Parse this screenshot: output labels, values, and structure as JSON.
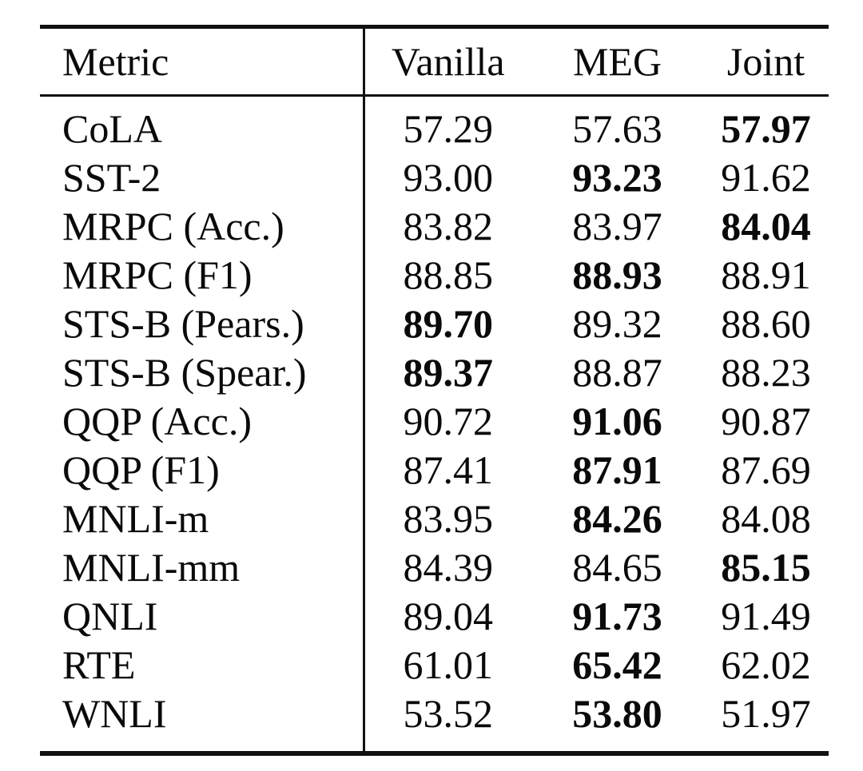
{
  "colors": {
    "background": "#ffffff",
    "text": "#0a0a0a",
    "rule": "#111111"
  },
  "table": {
    "columns": [
      "Metric",
      "Vanilla",
      "MEG",
      "Joint"
    ],
    "rows": [
      {
        "metric": "CoLA",
        "values": [
          "57.29",
          "57.63",
          "57.97"
        ],
        "bold_index": 2
      },
      {
        "metric": "SST-2",
        "values": [
          "93.00",
          "93.23",
          "91.62"
        ],
        "bold_index": 1
      },
      {
        "metric": "MRPC (Acc.)",
        "values": [
          "83.82",
          "83.97",
          "84.04"
        ],
        "bold_index": 2
      },
      {
        "metric": "MRPC (F1)",
        "values": [
          "88.85",
          "88.93",
          "88.91"
        ],
        "bold_index": 1
      },
      {
        "metric": "STS-B (Pears.)",
        "values": [
          "89.70",
          "89.32",
          "88.60"
        ],
        "bold_index": 0
      },
      {
        "metric": "STS-B (Spear.)",
        "values": [
          "89.37",
          "88.87",
          "88.23"
        ],
        "bold_index": 0
      },
      {
        "metric": "QQP (Acc.)",
        "values": [
          "90.72",
          "91.06",
          "90.87"
        ],
        "bold_index": 1
      },
      {
        "metric": "QQP (F1)",
        "values": [
          "87.41",
          "87.91",
          "87.69"
        ],
        "bold_index": 1
      },
      {
        "metric": "MNLI-m",
        "values": [
          "83.95",
          "84.26",
          "84.08"
        ],
        "bold_index": 1
      },
      {
        "metric": "MNLI-mm",
        "values": [
          "84.39",
          "84.65",
          "85.15"
        ],
        "bold_index": 2
      },
      {
        "metric": "QNLI",
        "values": [
          "89.04",
          "91.73",
          "91.49"
        ],
        "bold_index": 1
      },
      {
        "metric": "RTE",
        "values": [
          "61.01",
          "65.42",
          "62.02"
        ],
        "bold_index": 1
      },
      {
        "metric": "WNLI",
        "values": [
          "53.52",
          "53.80",
          "51.97"
        ],
        "bold_index": 1
      }
    ]
  }
}
